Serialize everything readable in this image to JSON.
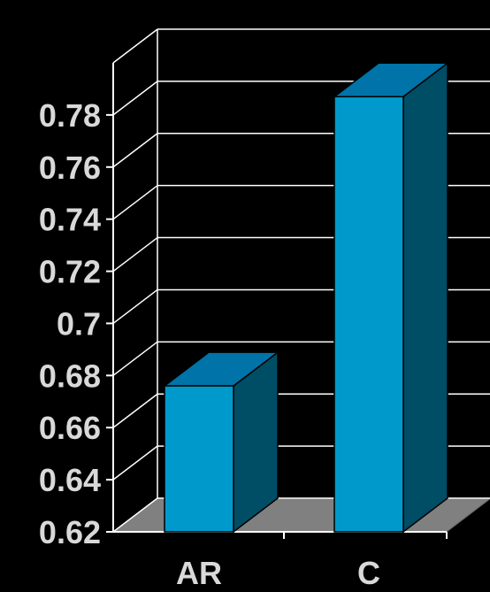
{
  "chart_data": {
    "type": "bar",
    "title": "",
    "xlabel": "",
    "ylabel": "",
    "categories": [
      "AR",
      "C"
    ],
    "values": [
      0.676,
      0.787
    ],
    "ylim": [
      0.62,
      0.8
    ],
    "yticks": [
      "0.62",
      "0.64",
      "0.66",
      "0.68",
      "0.7",
      "0.72",
      "0.74",
      "0.76",
      "0.78"
    ],
    "grid": true,
    "three_d": true,
    "colors": {
      "bar_front": "#0099cc",
      "bar_top": "#0073a8",
      "bar_side": "#004d66",
      "floor": "#808080",
      "grid": "#ffffff",
      "text": "#d9d9d9"
    }
  }
}
